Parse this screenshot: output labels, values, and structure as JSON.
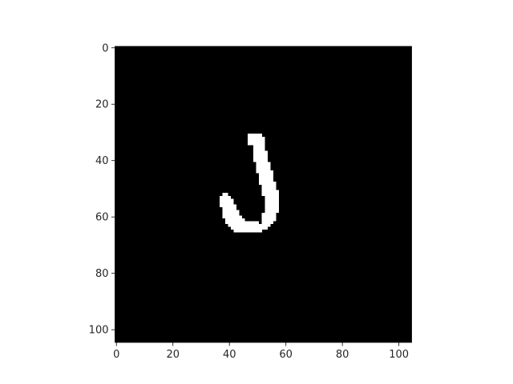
{
  "chart_data": {
    "type": "heatmap",
    "title": "",
    "xlabel": "",
    "ylabel": "",
    "xlim": [
      -0.5,
      104.5
    ],
    "ylim": [
      104.5,
      -0.5
    ],
    "grid": false,
    "colormap": "gray",
    "image_size": [
      105,
      105
    ],
    "background_value": 0,
    "foreground_value": 1,
    "colors": {
      "background": "#000000",
      "foreground": "#ffffff"
    },
    "x_ticks": [
      0,
      20,
      40,
      60,
      80,
      100
    ],
    "y_ticks": [
      0,
      20,
      40,
      60,
      80,
      100
    ],
    "x_tick_labels": [
      "0",
      "20",
      "40",
      "60",
      "80",
      "100"
    ],
    "y_tick_labels": [
      "0",
      "20",
      "40",
      "60",
      "80",
      "100"
    ],
    "foreground_runs": [
      [
        31,
        47,
        51
      ],
      [
        32,
        47,
        52
      ],
      [
        33,
        47,
        52
      ],
      [
        34,
        47,
        52
      ],
      [
        35,
        49,
        52
      ],
      [
        36,
        49,
        52
      ],
      [
        37,
        49,
        53
      ],
      [
        38,
        49,
        53
      ],
      [
        39,
        49,
        53
      ],
      [
        40,
        49,
        53
      ],
      [
        41,
        50,
        54
      ],
      [
        42,
        50,
        54
      ],
      [
        43,
        50,
        54
      ],
      [
        44,
        50,
        55
      ],
      [
        45,
        51,
        55
      ],
      [
        46,
        51,
        55
      ],
      [
        47,
        51,
        55
      ],
      [
        48,
        51,
        56
      ],
      [
        49,
        52,
        56
      ],
      [
        50,
        52,
        56
      ],
      [
        51,
        52,
        57
      ],
      [
        52,
        38,
        39
      ],
      [
        52,
        52,
        57
      ],
      [
        53,
        37,
        40
      ],
      [
        53,
        53,
        57
      ],
      [
        54,
        37,
        41
      ],
      [
        54,
        53,
        57
      ],
      [
        55,
        37,
        41
      ],
      [
        55,
        53,
        57
      ],
      [
        56,
        37,
        42
      ],
      [
        56,
        53,
        57
      ],
      [
        57,
        38,
        42
      ],
      [
        57,
        53,
        57
      ],
      [
        58,
        38,
        43
      ],
      [
        58,
        53,
        57
      ],
      [
        59,
        38,
        43
      ],
      [
        59,
        52,
        56
      ],
      [
        60,
        38,
        44
      ],
      [
        60,
        52,
        56
      ],
      [
        61,
        39,
        45
      ],
      [
        61,
        52,
        56
      ],
      [
        62,
        39,
        55
      ],
      [
        63,
        40,
        54
      ],
      [
        64,
        41,
        53
      ],
      [
        65,
        42,
        51
      ]
    ],
    "background_pixels": [
      [
        62,
        51
      ]
    ]
  }
}
